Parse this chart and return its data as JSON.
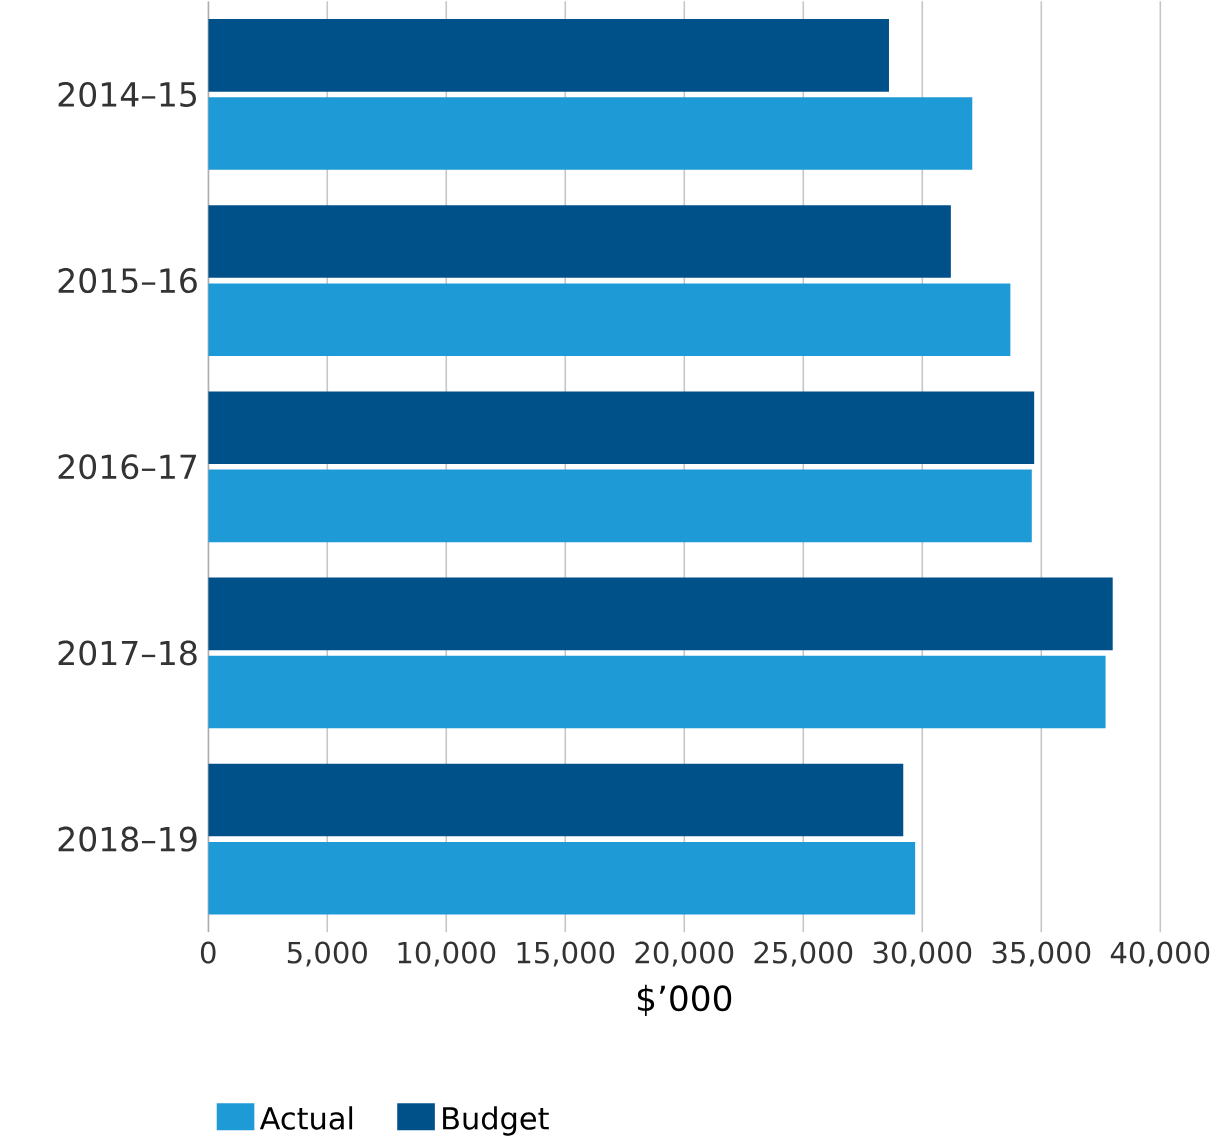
{
  "chart_data": {
    "type": "bar",
    "orientation": "horizontal",
    "xlabel": "$’000",
    "categories": [
      "2014–15",
      "2015–16",
      "2016–17",
      "2017–18",
      "2018–19"
    ],
    "series": [
      {
        "name": "Actual",
        "color": "#1e9ad6",
        "values": [
          32100,
          33700,
          34600,
          37700,
          29700
        ]
      },
      {
        "name": "Budget",
        "color": "#00508a",
        "values": [
          28600,
          31200,
          34700,
          38000,
          29200
        ]
      }
    ],
    "xlim": [
      0,
      40000
    ],
    "xticks": [
      0,
      {
        "value": 5000,
        "label": "5,000"
      },
      {
        "value": 10000,
        "label": "10,000"
      },
      {
        "value": 15000,
        "label": "15,000"
      },
      {
        "value": 20000,
        "label": "20,000"
      },
      {
        "value": 25000,
        "label": "25,000"
      },
      {
        "value": 30000,
        "label": "30,000"
      },
      {
        "value": 35000,
        "label": "35,000"
      },
      {
        "value": 40000,
        "label": "40,000"
      }
    ],
    "grid": "x",
    "legend": "bottom left"
  }
}
